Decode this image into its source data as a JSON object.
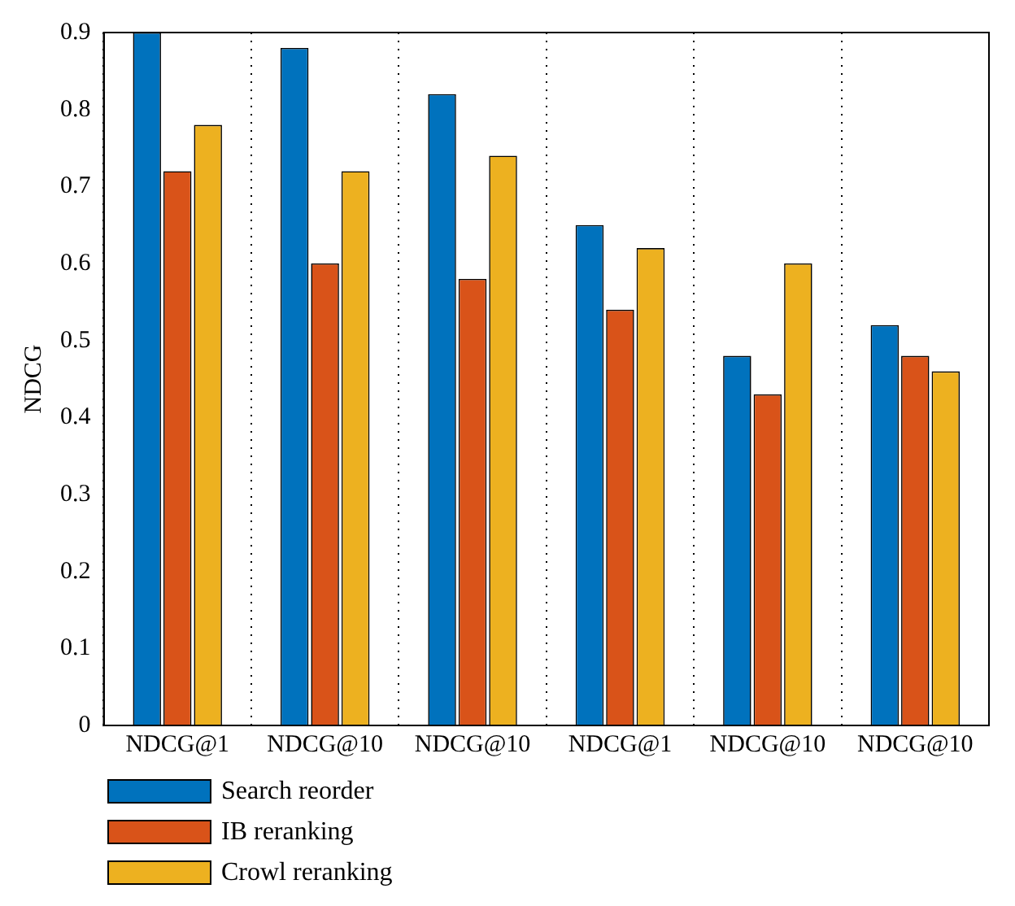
{
  "chart_data": {
    "type": "bar",
    "ylabel": "NDCG",
    "categories": [
      "NDCG@1",
      "NDCG@10",
      "NDCG@10",
      "NDCG@1",
      "NDCG@10",
      "NDCG@10"
    ],
    "series": [
      {
        "name": "Search reorder",
        "color": "#0072bd",
        "values": [
          0.9,
          0.88,
          0.82,
          0.65,
          0.48,
          0.52
        ]
      },
      {
        "name": "IB reranking",
        "color": "#d95319",
        "values": [
          0.72,
          0.6,
          0.58,
          0.54,
          0.43,
          0.48
        ]
      },
      {
        "name": "Crowl reranking",
        "color": "#edb120",
        "values": [
          0.78,
          0.72,
          0.74,
          0.62,
          0.6,
          0.46
        ]
      }
    ],
    "ylim": [
      0,
      0.9
    ],
    "yticks": [
      0,
      0.1,
      0.2,
      0.3,
      0.4,
      0.5,
      0.6,
      0.7,
      0.8,
      0.9
    ],
    "grid": "x",
    "legend": "bottom left"
  }
}
